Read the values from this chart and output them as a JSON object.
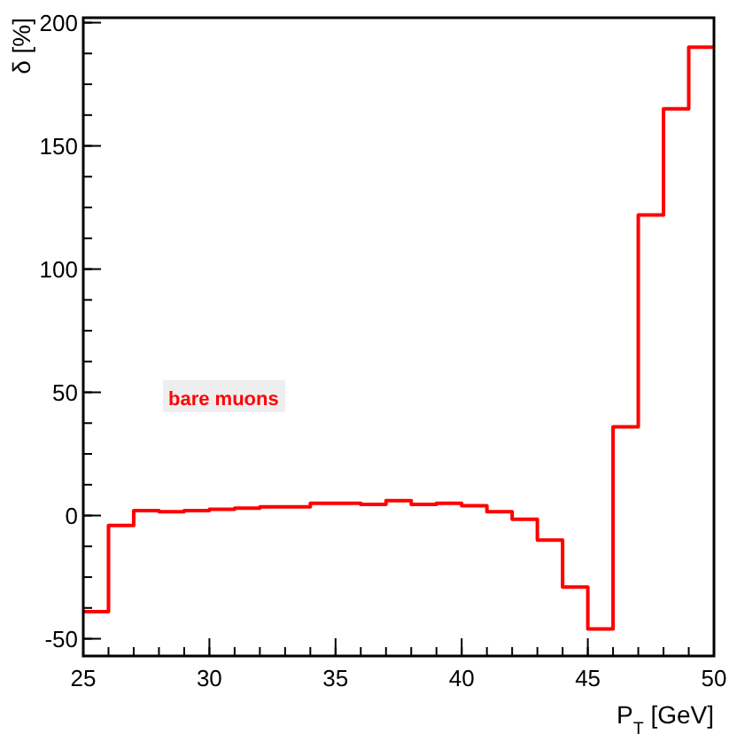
{
  "chart_data": {
    "type": "histogram",
    "xlabel": "P$_{T}$ [GeV]",
    "ylabel": "δ [%]",
    "bins": [
      25,
      26,
      27,
      28,
      29,
      30,
      31,
      32,
      33,
      34,
      35,
      36,
      37,
      38,
      39,
      40,
      41,
      42,
      43,
      44,
      45,
      46,
      47,
      48,
      49,
      50
    ],
    "values": [
      -39,
      -4,
      2,
      1.5,
      2,
      2.5,
      3,
      3.5,
      3.5,
      5,
      5,
      4.5,
      6,
      4.5,
      5,
      4,
      1.5,
      -1.5,
      -10,
      -29,
      -46,
      36,
      122,
      165,
      190
    ],
    "color": "#ff0000",
    "xlim": [
      25,
      50
    ],
    "ylim": [
      -57,
      202
    ],
    "xticks": [
      25,
      30,
      35,
      40,
      45,
      50
    ],
    "yticks": [
      -50,
      0,
      50,
      100,
      150,
      200
    ],
    "annotations": [
      "bare muons"
    ]
  }
}
